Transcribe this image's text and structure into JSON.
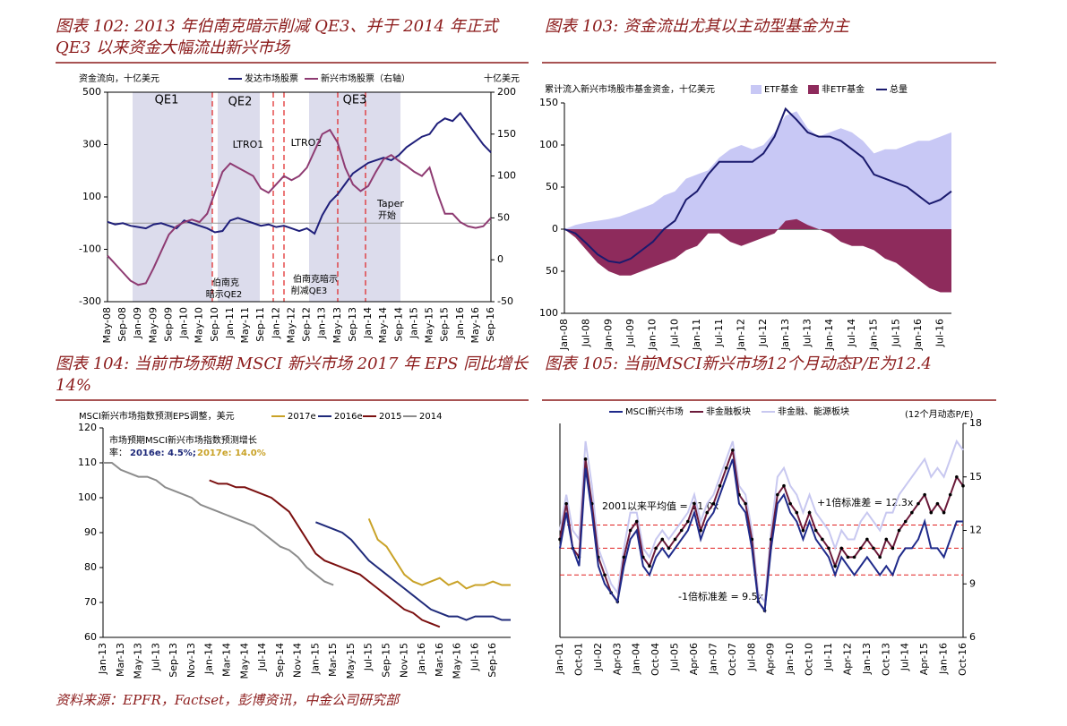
{
  "chart_data": [
    {
      "type": "line",
      "title": "图表 102: 2013 年伯南克暗示削减 QE3、并于 2014 年正式 QE3 以来资金大幅流出新兴市场",
      "y_label": "资金流向，十亿美元",
      "y2_label": "十亿美元",
      "categories": [
        "May-08",
        null,
        "Sep-08",
        null,
        "Jan-09",
        null,
        "May-09",
        null,
        "Sep-09",
        null,
        "Jan-10",
        null,
        "May-10",
        null,
        "Sep-10",
        null,
        "Jan-11",
        null,
        "May-11",
        null,
        "Sep-11",
        null,
        "Jan-12",
        null,
        "May-12",
        null,
        "Sep-12",
        null,
        "Jan-13",
        null,
        "May-13",
        null,
        "Sep-13",
        null,
        "Jan-14",
        null,
        "May-14",
        null,
        "Sep-14",
        null,
        "Jan-15",
        null,
        "May-15",
        null,
        "Sep-15",
        null,
        "Jan-16",
        null,
        "May-16",
        null,
        "Sep-16"
      ],
      "series": [
        {
          "name": "发达市场股票",
          "color": "#1f1f7a",
          "values": [
            5,
            -5,
            0,
            -10,
            -15,
            -20,
            -5,
            0,
            -10,
            -20,
            10,
            0,
            -10,
            -20,
            -35,
            -30,
            10,
            20,
            10,
            0,
            -10,
            -5,
            -15,
            -10,
            -20,
            -30,
            -20,
            -40,
            30,
            80,
            110,
            150,
            190,
            210,
            230,
            240,
            250,
            240,
            260,
            290,
            310,
            330,
            340,
            380,
            400,
            390,
            420,
            380,
            340,
            300,
            270
          ]
        },
        {
          "name": "新兴市场股票（右轴）",
          "color": "#8e3b72",
          "axis": "y2",
          "values": [
            5,
            -5,
            -15,
            -25,
            -30,
            -28,
            -10,
            10,
            30,
            40,
            45,
            48,
            45,
            55,
            80,
            105,
            115,
            110,
            105,
            100,
            85,
            80,
            90,
            100,
            95,
            100,
            110,
            130,
            150,
            155,
            140,
            110,
            90,
            82,
            88,
            105,
            120,
            125,
            118,
            112,
            105,
            100,
            110,
            80,
            55,
            55,
            45,
            40,
            38,
            40,
            50
          ]
        }
      ],
      "ylim": [
        -300,
        500
      ],
      "yticks": [
        -300,
        -100,
        100,
        300,
        500
      ],
      "y2lim": [
        -50,
        200
      ],
      "y2ticks": [
        -50,
        0,
        50,
        100,
        150,
        200
      ],
      "annotations": [
        "QE1",
        "QE2",
        "QE3",
        "LTRO1",
        "LTRO2",
        [
          "Taper",
          "开始"
        ],
        [
          "伯南克",
          "暗示QE2"
        ],
        [
          "伯南克暗示",
          "削减QE3"
        ]
      ]
    },
    {
      "type": "area",
      "title": "图表 103: 资金流出尤其以主动型基金为主",
      "y_label": "累计流入新兴市场股市基金资金，十亿美元",
      "categories": [
        "Jan-08",
        null,
        "Jul-08",
        null,
        "Jan-09",
        null,
        "Jul-09",
        null,
        "Jan-10",
        null,
        "Jul-10",
        null,
        "Jan-11",
        null,
        "Jul-11",
        null,
        "Jan-12",
        null,
        "Jul-12",
        null,
        "Jan-13",
        null,
        "Jul-13",
        null,
        "Jan-14",
        null,
        "Jul-14",
        null,
        "Jan-15",
        null,
        "Jul-15",
        null,
        "Jan-16",
        null,
        "Jul-16",
        null
      ],
      "series": [
        {
          "name": "ETF基金",
          "color": "#c8c8f5",
          "values": [
            0,
            5,
            8,
            10,
            12,
            15,
            20,
            25,
            30,
            40,
            45,
            60,
            65,
            70,
            85,
            95,
            100,
            95,
            100,
            115,
            135,
            140,
            120,
            110,
            115,
            120,
            115,
            105,
            90,
            95,
            95,
            100,
            105,
            105,
            110,
            115
          ]
        },
        {
          "name": "非ETF基金",
          "color": "#8e2b5c",
          "values": [
            0,
            -10,
            -25,
            -40,
            -50,
            -55,
            -55,
            -50,
            -45,
            -40,
            -35,
            -25,
            -20,
            -5,
            -5,
            -15,
            -20,
            -15,
            -10,
            -5,
            10,
            12,
            5,
            0,
            -5,
            -15,
            -20,
            -20,
            -25,
            -35,
            -40,
            -50,
            -60,
            -70,
            -75,
            -75
          ]
        },
        {
          "name": "总量",
          "color": "#1a1a6e",
          "type": "line",
          "values": [
            0,
            -5,
            -17,
            -30,
            -38,
            -40,
            -35,
            -25,
            -15,
            0,
            10,
            35,
            45,
            65,
            80,
            80,
            80,
            80,
            90,
            110,
            143,
            130,
            115,
            110,
            110,
            105,
            95,
            85,
            65,
            60,
            55,
            50,
            40,
            30,
            35,
            45
          ]
        }
      ],
      "ylim": [
        -100,
        150
      ],
      "yticks": [
        {
          "value": -100,
          "label": "100"
        },
        {
          "value": -50,
          "label": "50"
        },
        0,
        50,
        100,
        150
      ]
    },
    {
      "type": "line",
      "title": "图表 104: 当前市场预期 MSCI 新兴市场 2017 年 EPS 同比增长 14%",
      "y_label": "MSCI新兴市场指数预测EPS调整，美元",
      "categories": [
        "Jan-13",
        null,
        "Mar-13",
        null,
        "May-13",
        null,
        "Jul-13",
        null,
        "Sep-13",
        null,
        "Nov-13",
        null,
        "Jan-14",
        null,
        "Mar-14",
        null,
        "May-14",
        null,
        "Jul-14",
        null,
        "Sep-14",
        null,
        "Nov-14",
        null,
        "Jan-15",
        null,
        "Mar-15",
        null,
        "May-15",
        null,
        "Jul-15",
        null,
        "Sep-15",
        null,
        "Nov-15",
        null,
        "Jan-16",
        null,
        "Mar-16",
        null,
        "May-16",
        null,
        "Jul-16",
        null,
        "Sep-16",
        null,
        null
      ],
      "series": [
        {
          "name": "2017e",
          "color": "#c9a227",
          "values": [
            null,
            null,
            null,
            null,
            null,
            null,
            null,
            null,
            null,
            null,
            null,
            null,
            null,
            null,
            null,
            null,
            null,
            null,
            null,
            null,
            null,
            null,
            null,
            null,
            null,
            null,
            null,
            null,
            null,
            null,
            94,
            88,
            86,
            82,
            78,
            76,
            75,
            76,
            77,
            75,
            76,
            74,
            75,
            75,
            76,
            75,
            75
          ]
        },
        {
          "name": "2016e",
          "color": "#1f2a7a",
          "values": [
            null,
            null,
            null,
            null,
            null,
            null,
            null,
            null,
            null,
            null,
            null,
            null,
            null,
            null,
            null,
            null,
            null,
            null,
            null,
            null,
            null,
            null,
            null,
            null,
            93,
            92,
            91,
            90,
            88,
            85,
            82,
            80,
            78,
            76,
            74,
            72,
            70,
            68,
            67,
            66,
            66,
            65,
            66,
            66,
            66,
            65,
            65
          ]
        },
        {
          "name": "2015",
          "color": "#7b1010",
          "values": [
            null,
            null,
            null,
            null,
            null,
            null,
            null,
            null,
            null,
            null,
            null,
            null,
            105,
            104,
            104,
            103,
            103,
            102,
            101,
            100,
            98,
            96,
            92,
            88,
            84,
            82,
            81,
            80,
            79,
            78,
            76,
            74,
            72,
            70,
            68,
            67,
            65,
            64,
            63,
            null,
            null,
            null,
            null,
            null,
            null,
            null,
            null
          ]
        },
        {
          "name": "2014",
          "color": "#8c8c8c",
          "values": [
            110,
            110,
            108,
            107,
            106,
            106,
            105,
            103,
            102,
            101,
            100,
            98,
            97,
            96,
            95,
            94,
            93,
            92,
            90,
            88,
            86,
            85,
            83,
            80,
            78,
            76,
            75,
            null,
            null,
            null,
            null,
            null,
            null,
            null,
            null,
            null,
            null,
            null,
            null,
            null,
            null,
            null,
            null,
            null,
            null,
            null,
            null
          ]
        }
      ],
      "ylim": [
        60,
        120
      ],
      "yticks": [
        60,
        70,
        80,
        90,
        100,
        110,
        120
      ],
      "annotations": [
        "市场预期MSCI新兴市场指数预测增长",
        "率：",
        "2016e: 4.5%;",
        "2017e: 14.0%"
      ]
    },
    {
      "type": "line",
      "title": "图表 105: 当前MSCI新兴市场12个月动态P/E为12.4",
      "y_label": "(12个月动态P/E)",
      "y_axis_side": "right",
      "categories": [
        "Jan-01",
        null,
        null,
        "Oct-01",
        null,
        null,
        "Jul-02",
        null,
        null,
        "Apr-03",
        null,
        null,
        "Jan-04",
        null,
        null,
        "Oct-04",
        null,
        null,
        "Jul-05",
        null,
        null,
        "Apr-06",
        null,
        null,
        "Jan-07",
        null,
        null,
        "Oct-07",
        null,
        null,
        "Jul-08",
        null,
        null,
        "Apr-09",
        null,
        null,
        "Jan-10",
        null,
        null,
        "Oct-10",
        null,
        null,
        "Jul-11",
        null,
        null,
        "Apr-12",
        null,
        null,
        "Jan-13",
        null,
        null,
        "Oct-13",
        null,
        null,
        "Jul-14",
        null,
        null,
        "Apr-15",
        null,
        null,
        "Jan-16",
        null,
        null,
        "Oct-16"
      ],
      "series": [
        {
          "name": "MSCI新兴市场",
          "color": "#1f2a8a",
          "values": [
            11,
            13,
            11,
            10,
            15.5,
            13,
            10,
            9,
            8.5,
            8,
            10,
            11.5,
            12,
            10,
            9.5,
            10.5,
            11,
            10.5,
            11,
            11.5,
            12,
            13,
            11.5,
            12.5,
            13,
            14,
            15,
            16,
            13.5,
            13,
            11,
            8,
            7.5,
            11,
            13.5,
            14,
            13,
            12.5,
            11.5,
            12.5,
            11.5,
            11,
            10.5,
            9.5,
            10.5,
            10,
            9.5,
            10,
            10.5,
            10,
            9.5,
            10,
            9.5,
            10.5,
            11,
            11,
            11.5,
            12.5,
            11,
            11,
            10.5,
            11.5,
            12.5,
            12.5
          ]
        },
        {
          "name": "非金融板块",
          "color": "#6b1a3a",
          "markers": true,
          "values": [
            11.5,
            13.5,
            11,
            10.5,
            16,
            13.5,
            10.5,
            9.5,
            8.5,
            8,
            10.5,
            12,
            12.5,
            10.5,
            10,
            11,
            11.5,
            11,
            11.5,
            12,
            12.5,
            13.5,
            12,
            13,
            13.5,
            14.5,
            15.5,
            16.5,
            14,
            13.5,
            11.5,
            8,
            7.5,
            11.5,
            14,
            14.5,
            13.5,
            13,
            12,
            13,
            12,
            11.5,
            11,
            10,
            11,
            10.5,
            10.5,
            11,
            11.5,
            11,
            10.5,
            11.5,
            11,
            12,
            12.5,
            13,
            13.5,
            14,
            13,
            13.5,
            13,
            14,
            15,
            14.5
          ]
        },
        {
          "name": "非金融、能源板块",
          "color": "#c8c8f0",
          "values": [
            12,
            14,
            12,
            11.5,
            17,
            14.5,
            11,
            10,
            9,
            8.5,
            11,
            13,
            13,
            11,
            10.5,
            11.5,
            12,
            11.5,
            12,
            12.5,
            13,
            14,
            12.5,
            13.5,
            14,
            15,
            16,
            17,
            14.5,
            14,
            12,
            8.5,
            8,
            12,
            15,
            15.5,
            14.5,
            14,
            13,
            14,
            13,
            12.5,
            12,
            11,
            12,
            11.5,
            11.5,
            12.5,
            13,
            12.5,
            12,
            13,
            13,
            14,
            14.5,
            15,
            15.5,
            16,
            15,
            15.5,
            15,
            16,
            17,
            16.5
          ]
        }
      ],
      "ylim": [
        6,
        18
      ],
      "yticks": [
        6,
        9,
        12,
        15,
        18
      ],
      "reference_lines": [
        {
          "value": 12.3,
          "label": "+1倍标准差 = 12.3x"
        },
        {
          "value": 11.0,
          "label": "2001以来平均值 = 11.0x"
        },
        {
          "value": 9.5,
          "label": "-1倍标准差 = 9.5x"
        }
      ]
    }
  ],
  "source": "资料来源：EPFR，Factset，彭博资讯，中金公司研究部"
}
